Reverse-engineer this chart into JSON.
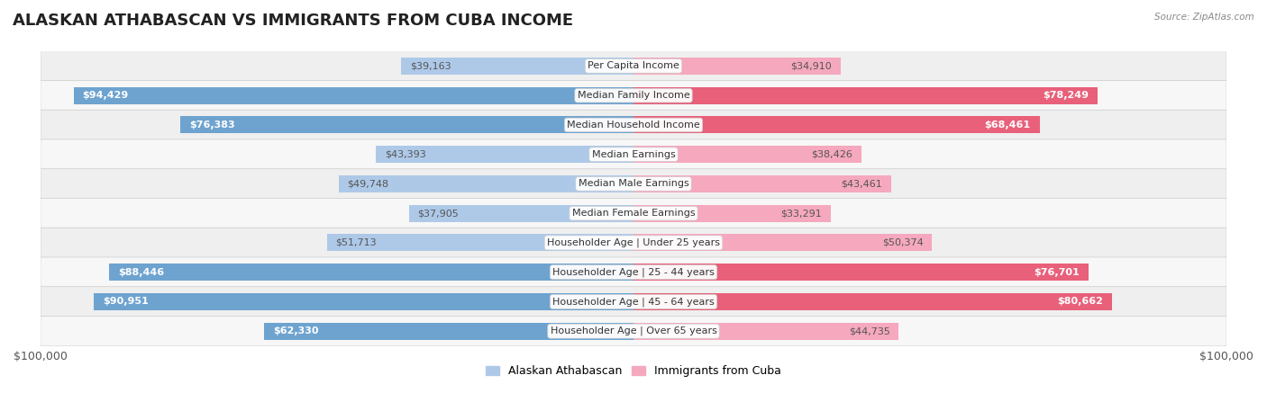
{
  "title": "ALASKAN ATHABASCAN VS IMMIGRANTS FROM CUBA INCOME",
  "source": "Source: ZipAtlas.com",
  "categories": [
    "Per Capita Income",
    "Median Family Income",
    "Median Household Income",
    "Median Earnings",
    "Median Male Earnings",
    "Median Female Earnings",
    "Householder Age | Under 25 years",
    "Householder Age | 25 - 44 years",
    "Householder Age | 45 - 64 years",
    "Householder Age | Over 65 years"
  ],
  "left_values": [
    39163,
    94429,
    76383,
    43393,
    49748,
    37905,
    51713,
    88446,
    90951,
    62330
  ],
  "right_values": [
    34910,
    78249,
    68461,
    38426,
    43461,
    33291,
    50374,
    76701,
    80662,
    44735
  ],
  "left_labels": [
    "$39,163",
    "$94,429",
    "$76,383",
    "$43,393",
    "$49,748",
    "$37,905",
    "$51,713",
    "$88,446",
    "$90,951",
    "$62,330"
  ],
  "right_labels": [
    "$34,910",
    "$78,249",
    "$68,461",
    "$38,426",
    "$43,461",
    "$33,291",
    "$50,374",
    "$76,701",
    "$80,662",
    "$44,735"
  ],
  "max_value": 100000,
  "left_color_light": "#aec9e8",
  "left_color_dark": "#6ea3d0",
  "right_color_light": "#f5a8be",
  "right_color_dark": "#e8607a",
  "inside_threshold": 55000,
  "legend_left": "Alaskan Athabascan",
  "legend_right": "Immigrants from Cuba",
  "row_color_odd": "#f7f7f7",
  "row_color_even": "#efefef",
  "title_fontsize": 13,
  "label_fontsize": 8,
  "cat_fontsize": 8,
  "tick_fontsize": 9,
  "bar_height": 0.58
}
